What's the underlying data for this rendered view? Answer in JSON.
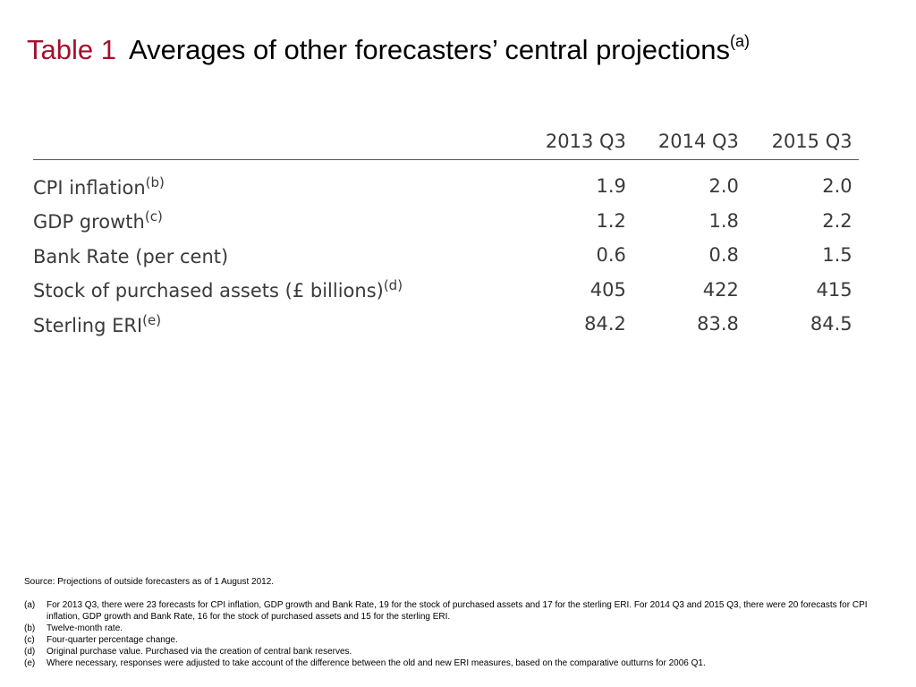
{
  "title": {
    "label": "Table 1",
    "text": "Averages of other forecasters’ central projections",
    "footnote": "(a)"
  },
  "table": {
    "columns": [
      "2013 Q3",
      "2014 Q3",
      "2015 Q3"
    ],
    "rows": [
      {
        "label": "CPI inflation",
        "footnote": "(b)",
        "values": [
          "1.9",
          "2.0",
          "2.0"
        ]
      },
      {
        "label": "GDP growth",
        "footnote": "(c)",
        "values": [
          "1.2",
          "1.8",
          "2.2"
        ]
      },
      {
        "label": "Bank Rate (per cent)",
        "footnote": "",
        "values": [
          "0.6",
          "0.8",
          "1.5"
        ]
      },
      {
        "label": "Stock of purchased assets (£ billions)",
        "footnote": "(d)",
        "values": [
          "405",
          "422",
          "415"
        ]
      },
      {
        "label": "Sterling ERI",
        "footnote": "(e)",
        "values": [
          "84.2",
          "83.8",
          "84.5"
        ]
      }
    ]
  },
  "notes": {
    "source": "Source:  Projections of outside forecasters as of 1 August 2012.",
    "items": [
      {
        "key": "(a)",
        "text": "For 2013 Q3, there were 23 forecasts for CPI inflation, GDP growth and Bank Rate, 19 for the stock of purchased assets and 17 for the sterling ERI.  For 2014 Q3 and 2015 Q3, there were 20 forecasts for CPI inflation, GDP growth and Bank Rate, 16 for the stock of purchased assets and 15 for the sterling ERI."
      },
      {
        "key": "(b)",
        "text": "Twelve-month rate."
      },
      {
        "key": "(c)",
        "text": "Four-quarter percentage change."
      },
      {
        "key": "(d)",
        "text": "Original purchase value.  Purchased via the creation of central bank reserves."
      },
      {
        "key": "(e)",
        "text": "Where necessary, responses were adjusted to take account of the difference between the old and new ERI measures, based on the comparative outturns for 2006 Q1."
      }
    ]
  },
  "colors": {
    "title_label": "#a50f2d",
    "table_text": "#3a3a3a"
  }
}
